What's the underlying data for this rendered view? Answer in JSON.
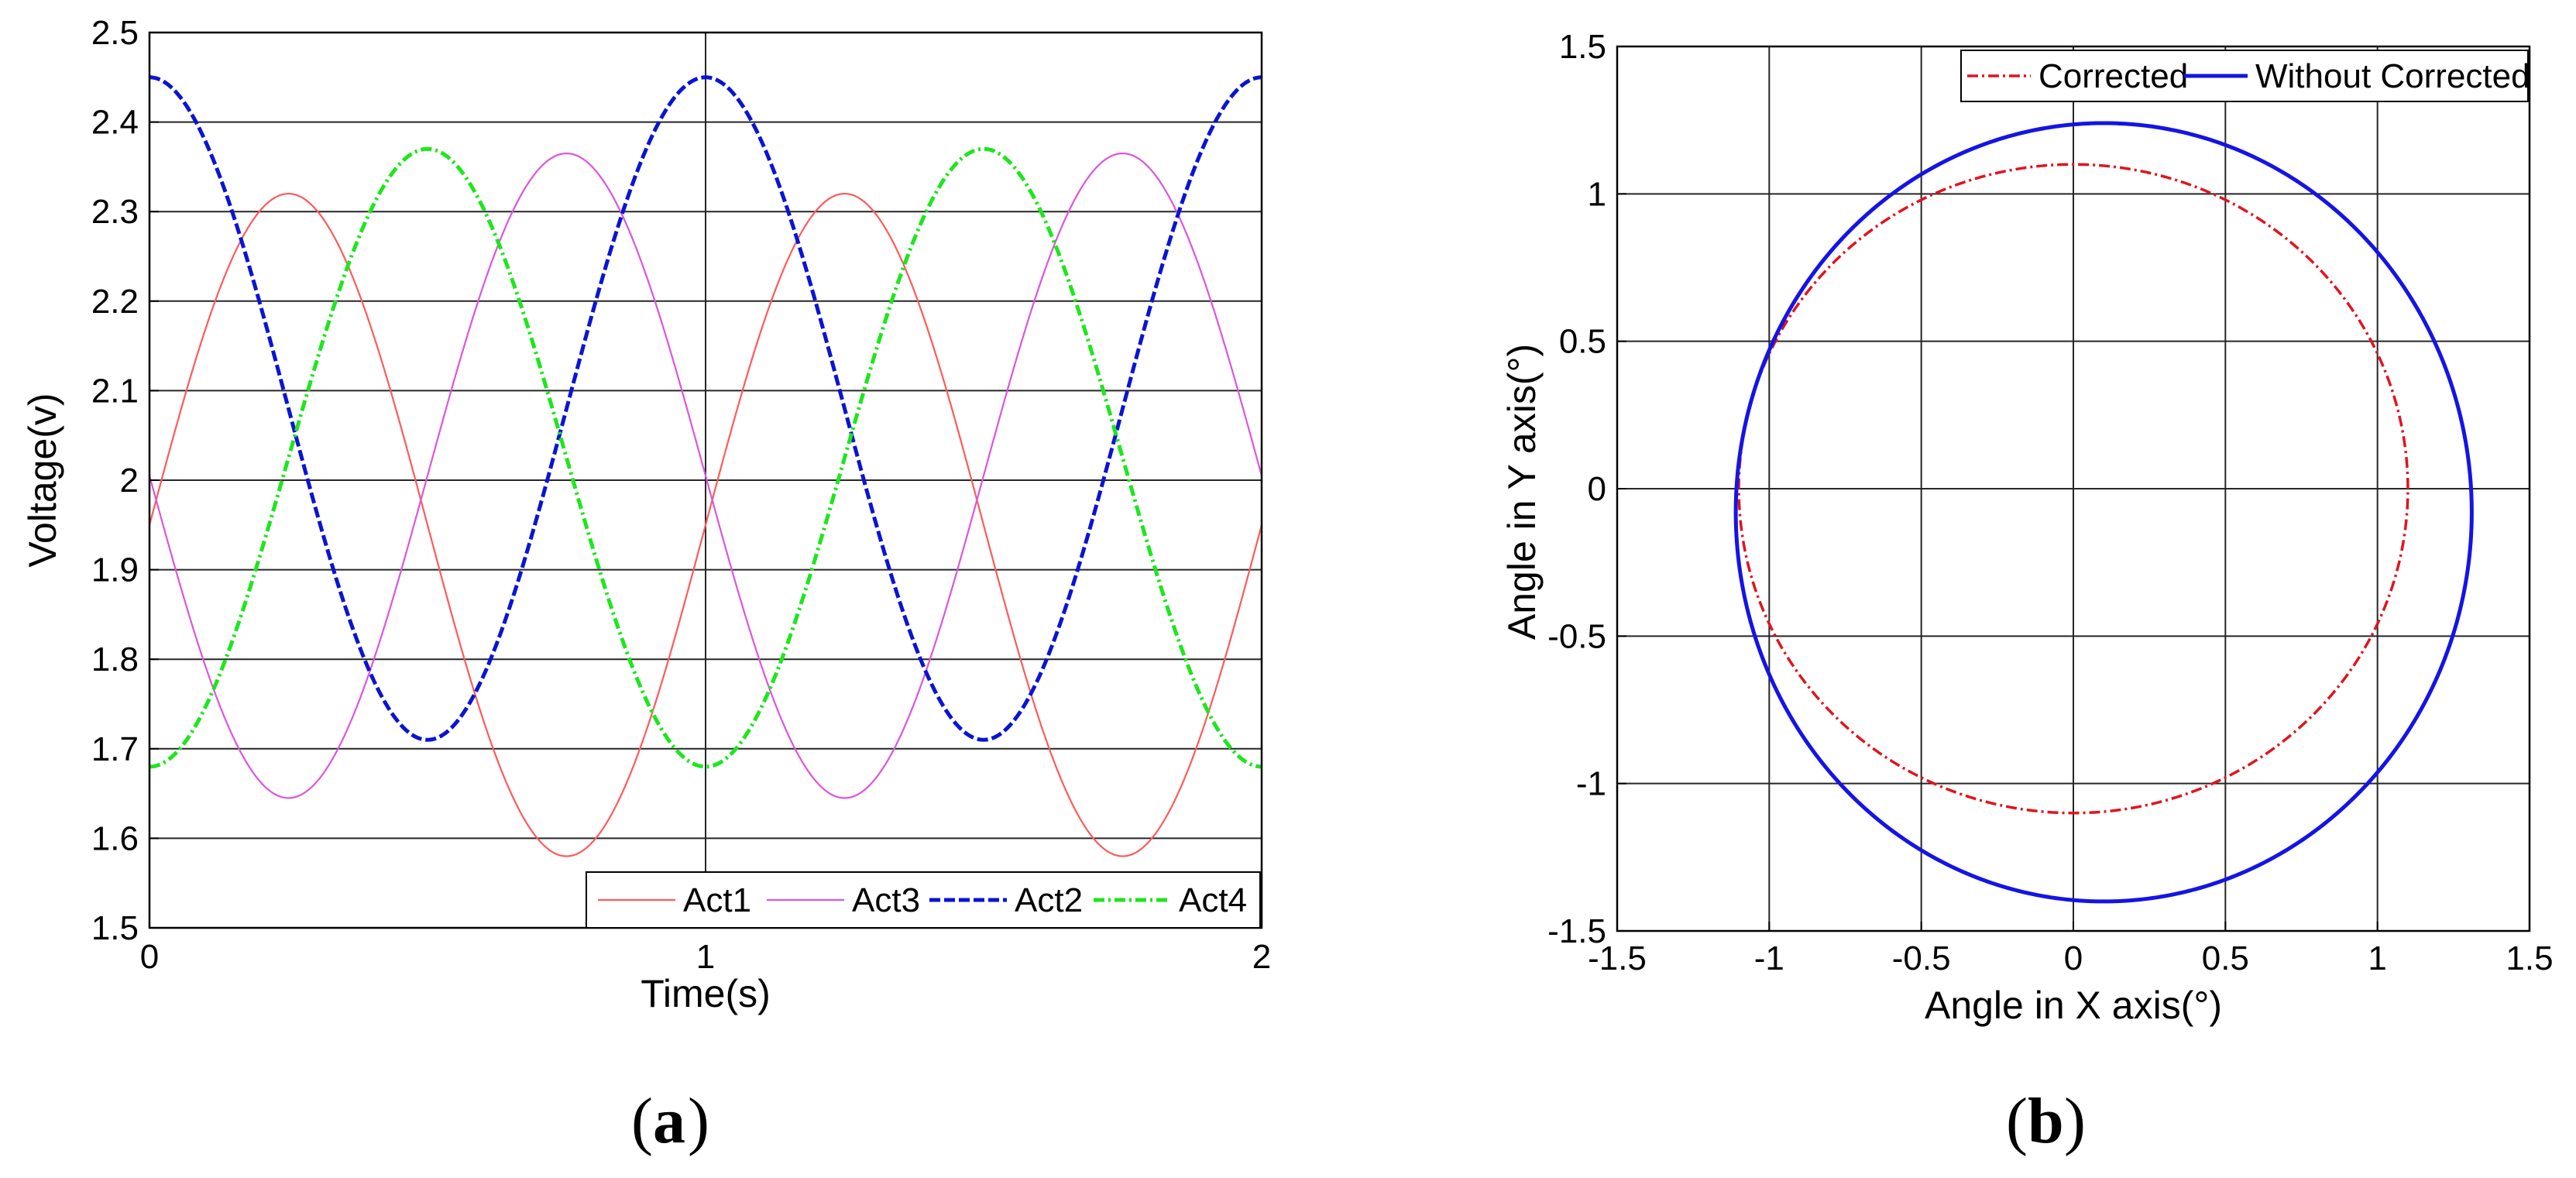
{
  "chart_data": [
    {
      "panel_label": "(a)",
      "type": "line",
      "xlabel": "Time(s)",
      "ylabel": "Voltage(v)",
      "xlim": [
        0,
        2
      ],
      "ylim": [
        1.5,
        2.5
      ],
      "xticks": [
        "0",
        "1",
        "2"
      ],
      "yticks": [
        "1.5",
        "1.6",
        "1.7",
        "1.8",
        "1.9",
        "2",
        "2.1",
        "2.2",
        "2.3",
        "2.4",
        "2.5"
      ],
      "grid": true,
      "legend": {
        "placement": "bottom-right",
        "orientation": "horizontal"
      },
      "series": [
        {
          "name": "Act1",
          "color": "#ff5a5a",
          "dash": "solid",
          "form": "sine",
          "mean": 1.95,
          "amplitude": 0.37,
          "period": 1.0,
          "phase": 0.0,
          "values_at": {
            "x": [
              0,
              0.25,
              0.5,
              0.75,
              1.0,
              1.25,
              1.5,
              1.75,
              2.0
            ],
            "y": [
              1.95,
              2.32,
              1.95,
              1.58,
              1.95,
              2.32,
              1.95,
              1.58,
              1.95
            ]
          }
        },
        {
          "name": "Act3",
          "color": "#dd55dd",
          "dash": "solid",
          "form": "sine",
          "mean": 2.005,
          "amplitude": 0.36,
          "period": 1.0,
          "phase": 3.1416,
          "values_at": {
            "x": [
              0,
              0.25,
              0.5,
              0.75,
              1.0,
              1.25,
              1.5,
              1.75,
              2.0
            ],
            "y": [
              2.005,
              1.645,
              2.005,
              2.365,
              2.005,
              1.645,
              2.005,
              2.365,
              2.005
            ]
          }
        },
        {
          "name": "Act2",
          "color": "#0a14d2",
          "dash": "dashed",
          "form": "cosine",
          "mean": 2.08,
          "amplitude": 0.37,
          "period": 1.0,
          "phase": 0.0,
          "values_at": {
            "x": [
              0,
              0.25,
              0.5,
              0.75,
              1.0,
              1.25,
              1.5,
              1.75,
              2.0
            ],
            "y": [
              2.45,
              2.08,
              1.71,
              2.08,
              2.45,
              2.08,
              1.71,
              2.08,
              2.45
            ]
          }
        },
        {
          "name": "Act4",
          "color": "#1ee61e",
          "dash": "dashdot",
          "form": "cosine",
          "mean": 2.025,
          "amplitude": 0.345,
          "period": 1.0,
          "phase": 3.1416,
          "values_at": {
            "x": [
              0,
              0.25,
              0.5,
              0.75,
              1.0,
              1.25,
              1.5,
              1.75,
              2.0
            ],
            "y": [
              1.68,
              2.025,
              2.37,
              2.025,
              1.68,
              2.025,
              2.37,
              2.025,
              1.68
            ]
          }
        }
      ]
    },
    {
      "panel_label": "(b)",
      "type": "line",
      "xlabel": "Angle in X axis(°)",
      "ylabel": "Angle in Y axis(°)",
      "xlim": [
        -1.5,
        1.5
      ],
      "ylim": [
        -1.5,
        1.5
      ],
      "xticks": [
        "-1.5",
        "-1",
        "-0.5",
        "0",
        "0.5",
        "1",
        "1.5"
      ],
      "yticks": [
        "-1.5",
        "-1",
        "-0.5",
        "0",
        "0.5",
        "1",
        "1.5"
      ],
      "grid": true,
      "legend": {
        "placement": "top-right",
        "orientation": "horizontal"
      },
      "series": [
        {
          "name": "Corrected",
          "color": "#e0141e",
          "dash": "dashdot",
          "form": "ellipse",
          "center": [
            0.0,
            0.0
          ],
          "rx": 1.1,
          "ry": 1.1
        },
        {
          "name": "Without Corrected",
          "color": "#1414e6",
          "dash": "solid",
          "form": "ellipse",
          "center": [
            0.1,
            -0.08
          ],
          "rx": 1.21,
          "ry": 1.32
        }
      ]
    }
  ]
}
